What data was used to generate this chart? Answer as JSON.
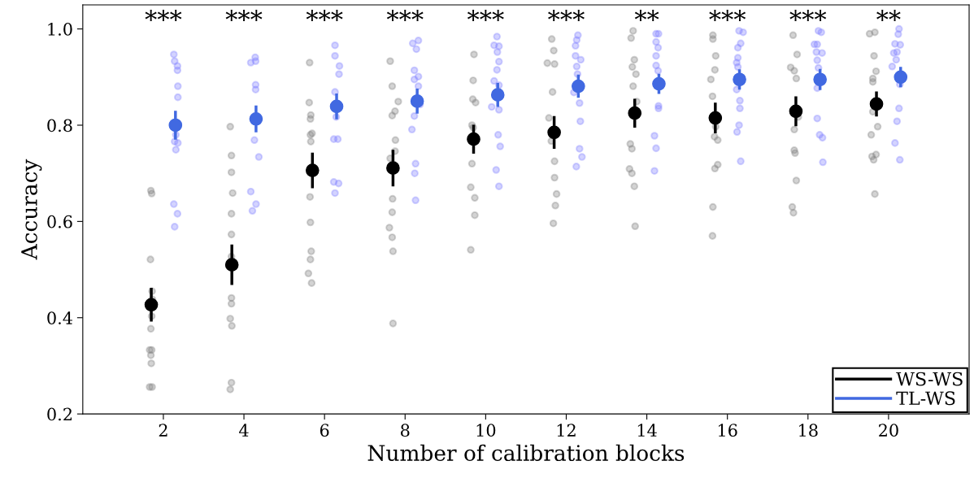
{
  "chart_data": {
    "type": "scatter",
    "xlabel": "Number of calibration blocks",
    "ylabel": "Accuracy",
    "xlim": [
      0,
      22
    ],
    "ylim": [
      0.2,
      1.05
    ],
    "xticks": [
      2,
      4,
      6,
      8,
      10,
      12,
      14,
      16,
      18,
      20
    ],
    "yticks": [
      0.2,
      0.4,
      0.6,
      0.8,
      {
        "value": 1.0,
        "label": "1.0"
      }
    ],
    "grid": false,
    "legend": "bottom right",
    "marker": "circle",
    "annotations": [
      "***",
      "***",
      "***",
      "***",
      "***",
      "***",
      "**",
      "***",
      "***",
      "**"
    ],
    "series": [
      {
        "color": "#808080",
        "x": [
          1.69,
          1.71,
          1.68,
          1.72,
          1.73,
          1.71,
          1.69,
          1.66,
          1.71,
          1.69,
          1.7,
          1.66,
          1.72,
          3.66,
          3.69,
          3.69,
          3.72,
          3.69,
          3.69,
          3.69,
          3.69,
          3.69,
          3.66,
          3.7,
          3.69,
          3.66,
          5.63,
          5.62,
          5.65,
          5.66,
          5.65,
          5.69,
          5.66,
          5.64,
          5.65,
          5.67,
          5.65,
          5.6,
          5.68,
          7.63,
          7.68,
          7.83,
          7.75,
          7.68,
          7.76,
          7.75,
          7.63,
          7.69,
          7.68,
          7.61,
          7.68,
          7.7,
          7.7,
          9.71,
          9.69,
          9.68,
          9.75,
          9.66,
          9.69,
          9.66,
          9.63,
          9.73,
          9.73,
          9.63,
          11.64,
          11.69,
          11.53,
          11.71,
          11.66,
          11.57,
          11.63,
          11.71,
          11.71,
          11.76,
          11.73,
          11.68,
          13.66,
          13.61,
          13.69,
          13.64,
          13.73,
          13.66,
          13.75,
          13.59,
          13.63,
          13.57,
          13.63,
          13.69,
          13.71,
          15.64,
          15.64,
          15.71,
          15.69,
          15.59,
          15.63,
          15.71,
          15.68,
          15.76,
          15.76,
          15.69,
          15.64,
          15.63,
          17.63,
          17.73,
          17.57,
          17.66,
          17.71,
          17.76,
          17.66,
          17.66,
          17.68,
          17.71,
          17.61,
          17.64,
          19.53,
          19.66,
          19.64,
          19.69,
          19.61,
          19.61,
          19.61,
          19.73,
          19.57,
          19.59,
          19.69,
          19.63,
          19.66
        ],
        "values": [
          0.664,
          0.658,
          0.521,
          0.455,
          0.438,
          0.403,
          0.377,
          0.333,
          0.333,
          0.322,
          0.305,
          0.256,
          0.256,
          0.797,
          0.737,
          0.702,
          0.659,
          0.616,
          0.573,
          0.527,
          0.441,
          0.429,
          0.398,
          0.383,
          0.265,
          0.251,
          0.93,
          0.847,
          0.813,
          0.821,
          0.78,
          0.783,
          0.766,
          0.651,
          0.598,
          0.538,
          0.521,
          0.492,
          0.472,
          0.933,
          0.881,
          0.849,
          0.829,
          0.82,
          0.769,
          0.746,
          0.731,
          0.647,
          0.619,
          0.587,
          0.567,
          0.538,
          0.388,
          0.947,
          0.893,
          0.854,
          0.847,
          0.8,
          0.795,
          0.72,
          0.671,
          0.649,
          0.613,
          0.541,
          0.979,
          0.955,
          0.929,
          0.927,
          0.869,
          0.815,
          0.767,
          0.725,
          0.691,
          0.657,
          0.633,
          0.596,
          0.996,
          0.981,
          0.936,
          0.921,
          0.906,
          0.881,
          0.849,
          0.761,
          0.751,
          0.709,
          0.7,
          0.673,
          0.59,
          0.987,
          0.979,
          0.944,
          0.915,
          0.895,
          0.86,
          0.797,
          0.776,
          0.769,
          0.718,
          0.71,
          0.63,
          0.57,
          0.987,
          0.947,
          0.92,
          0.913,
          0.897,
          0.817,
          0.791,
          0.748,
          0.742,
          0.685,
          0.63,
          0.618,
          0.99,
          0.993,
          0.944,
          0.912,
          0.897,
          0.89,
          0.828,
          0.797,
          0.78,
          0.735,
          0.739,
          0.728,
          0.657
        ]
      },
      {
        "color": "#8080ff",
        "x": [
          2.26,
          2.28,
          2.35,
          2.35,
          2.36,
          2.36,
          2.31,
          2.28,
          2.36,
          2.31,
          2.26,
          2.35,
          2.28,
          4.28,
          4.17,
          4.29,
          4.29,
          4.29,
          4.26,
          4.37,
          4.17,
          4.3,
          4.21,
          6.26,
          6.26,
          6.37,
          6.36,
          6.26,
          6.29,
          6.23,
          6.33,
          6.23,
          6.35,
          6.26,
          8.19,
          8.33,
          8.28,
          8.23,
          8.33,
          8.23,
          8.33,
          8.37,
          8.23,
          8.17,
          8.26,
          8.24,
          8.26,
          10.28,
          10.21,
          10.33,
          10.29,
          10.33,
          10.28,
          10.21,
          10.33,
          10.15,
          10.33,
          10.31,
          10.36,
          10.26,
          10.33,
          12.29,
          12.26,
          12.23,
          12.23,
          12.36,
          12.26,
          12.28,
          12.19,
          12.33,
          12.35,
          12.33,
          12.39,
          12.25,
          14.23,
          14.29,
          14.23,
          14.28,
          14.23,
          14.23,
          14.28,
          14.29,
          14.29,
          14.19,
          14.23,
          14.19,
          16.29,
          16.39,
          16.33,
          16.26,
          16.26,
          16.23,
          16.26,
          16.23,
          16.31,
          16.31,
          16.29,
          16.24,
          16.33,
          18.26,
          18.33,
          18.16,
          18.23,
          18.21,
          18.35,
          18.23,
          18.26,
          18.23,
          18.23,
          18.29,
          18.36,
          18.37,
          20.26,
          20.24,
          20.16,
          20.29,
          20.21,
          20.13,
          20.19,
          20.09,
          20.28,
          20.26,
          20.21,
          20.16,
          20.28
        ],
        "values": [
          0.947,
          0.933,
          0.923,
          0.914,
          0.881,
          0.858,
          0.78,
          0.766,
          0.763,
          0.749,
          0.636,
          0.616,
          0.589,
          0.941,
          0.93,
          0.933,
          0.884,
          0.874,
          0.769,
          0.734,
          0.662,
          0.636,
          0.622,
          0.966,
          0.944,
          0.923,
          0.906,
          0.869,
          0.817,
          0.771,
          0.771,
          0.682,
          0.679,
          0.659,
          0.97,
          0.976,
          0.958,
          0.914,
          0.901,
          0.895,
          0.881,
          0.843,
          0.819,
          0.791,
          0.72,
          0.7,
          0.644,
          0.984,
          0.966,
          0.964,
          0.952,
          0.932,
          0.915,
          0.892,
          0.883,
          0.838,
          0.832,
          0.78,
          0.756,
          0.707,
          0.673,
          0.987,
          0.977,
          0.965,
          0.944,
          0.936,
          0.922,
          0.906,
          0.868,
          0.846,
          0.808,
          0.751,
          0.734,
          0.714,
          0.99,
          0.99,
          0.973,
          0.961,
          0.944,
          0.924,
          0.913,
          0.84,
          0.835,
          0.778,
          0.752,
          0.705,
          0.996,
          0.993,
          0.97,
          0.961,
          0.94,
          0.93,
          0.921,
          0.874,
          0.851,
          0.835,
          0.8,
          0.786,
          0.725,
          0.996,
          0.993,
          0.968,
          0.968,
          0.952,
          0.95,
          0.935,
          0.919,
          0.877,
          0.814,
          0.78,
          0.774,
          0.723,
          1.0,
          0.989,
          0.969,
          0.967,
          0.952,
          0.95,
          0.936,
          0.922,
          0.885,
          0.835,
          0.808,
          0.763,
          0.728
        ]
      },
      {
        "name": "WS-WS",
        "color": "#000000",
        "x": [
          1.7,
          3.7,
          5.7,
          7.7,
          9.7,
          11.7,
          13.7,
          15.7,
          17.7,
          19.7
        ],
        "values": [
          0.427,
          0.51,
          0.706,
          0.711,
          0.771,
          0.785,
          0.825,
          0.815,
          0.829,
          0.844
        ],
        "errors": [
          0.035,
          0.042,
          0.037,
          0.038,
          0.03,
          0.034,
          0.03,
          0.032,
          0.031,
          0.026
        ]
      },
      {
        "name": "TL-WS",
        "color": "#4169e1",
        "x": [
          2.3,
          4.3,
          6.3,
          8.3,
          10.3,
          12.3,
          14.3,
          16.3,
          18.3,
          20.3
        ],
        "values": [
          0.8,
          0.813,
          0.839,
          0.85,
          0.863,
          0.881,
          0.886,
          0.895,
          0.895,
          0.9
        ],
        "errors": [
          0.03,
          0.028,
          0.027,
          0.026,
          0.025,
          0.024,
          0.021,
          0.021,
          0.022,
          0.021
        ]
      }
    ]
  }
}
